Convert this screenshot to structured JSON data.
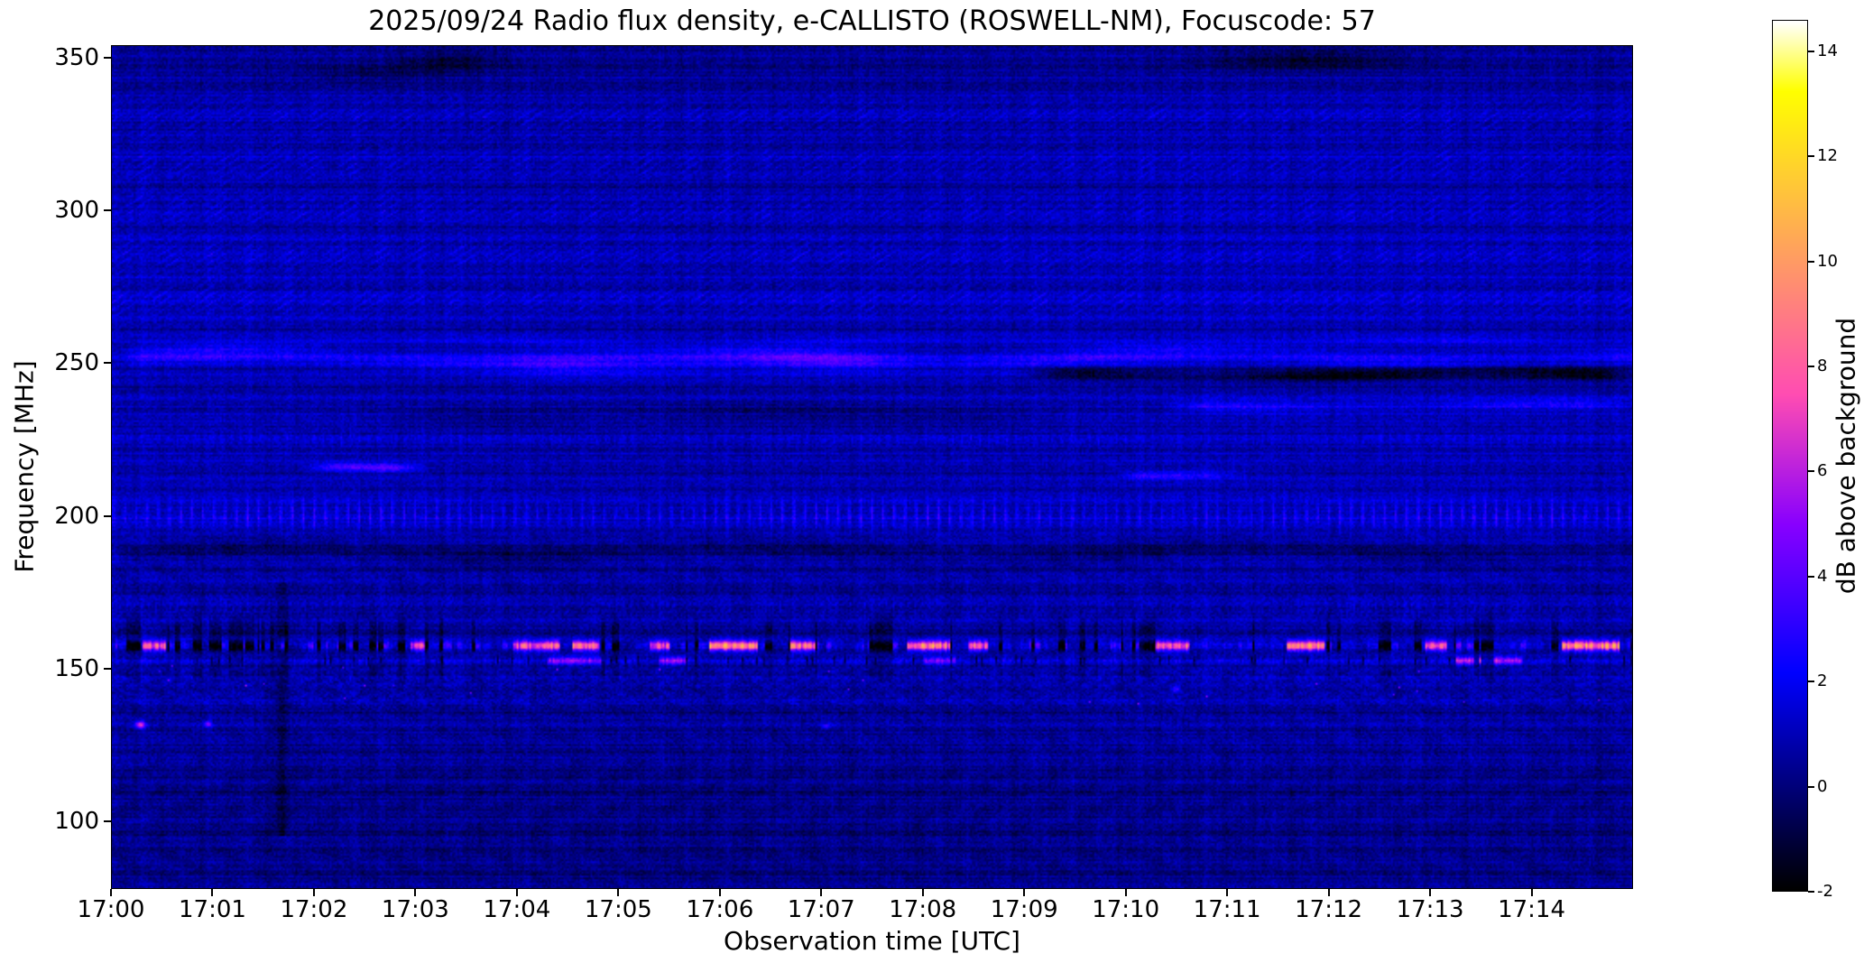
{
  "chart_data": {
    "type": "heatmap",
    "title": "2025/09/24  Radio flux density, e-CALLISTO (ROSWELL-NM), Focuscode: 57",
    "xlabel": "Observation time [UTC]",
    "ylabel": "Frequency [MHz]",
    "colormap": "gnuplot2",
    "grid": false,
    "x_start_min": 0,
    "x_end_min": 15,
    "x_ticks": [
      "17:00",
      "17:01",
      "17:02",
      "17:03",
      "17:04",
      "17:05",
      "17:06",
      "17:07",
      "17:08",
      "17:09",
      "17:10",
      "17:11",
      "17:12",
      "17:13",
      "17:14"
    ],
    "y_range": [
      78,
      354
    ],
    "y_ticks": [
      100,
      150,
      200,
      250,
      300,
      350
    ],
    "colorbar": {
      "label": "dB above background",
      "min": -2,
      "max": 14.6,
      "ticks": [
        14,
        12,
        10,
        8,
        6,
        4,
        2,
        0,
        -2
      ]
    },
    "features": [
      {
        "kind": "hatch",
        "name": "diagonal-interference-band",
        "f_lo": 262,
        "f_hi": 341,
        "amp": 1.25,
        "period": 7,
        "slope": 1.6
      },
      {
        "kind": "hline",
        "name": "bright-band-251",
        "f0": 251.5,
        "sigma": 2.0,
        "amp": 1.35,
        "wave": 1.2,
        "t0": 0,
        "t1": 15.3,
        "soft": 0.3
      },
      {
        "kind": "hline",
        "name": "bright-band-256",
        "f0": 256.5,
        "sigma": 1.2,
        "amp": 0.7,
        "wave": 0.8,
        "t0": 0,
        "t1": 15.3,
        "soft": 0.3
      },
      {
        "kind": "hline",
        "name": "bright-segment-250",
        "f0": 250.0,
        "sigma": 2.6,
        "amp": 1.35,
        "wave": 0.8,
        "t0": 3.4,
        "t1": 8.3,
        "soft": 1.2
      },
      {
        "kind": "hline",
        "name": "dark-streak-246",
        "f0": 246.3,
        "sigma": 1.5,
        "amp": -2.6,
        "wave": 0.5,
        "t0": 8.8,
        "t1": 15.3,
        "soft": 0.9
      },
      {
        "kind": "hline",
        "name": "bright-band-236",
        "f0": 236.0,
        "sigma": 1.3,
        "amp": 1.5,
        "wave": 0.4,
        "t0": 10.2,
        "t1": 15.3,
        "soft": 0.7
      },
      {
        "kind": "hline",
        "name": "dark-band-233",
        "f0": 233.0,
        "sigma": 2.6,
        "amp": -0.65,
        "wave": 0.8,
        "t0": 2.2,
        "t1": 9.6,
        "soft": 1.6
      },
      {
        "kind": "hline",
        "name": "streak-216",
        "f0": 216.0,
        "sigma": 1.0,
        "amp": 2.3,
        "wave": 0.3,
        "t0": 1.8,
        "t1": 3.2,
        "soft": 0.45
      },
      {
        "kind": "hline",
        "name": "streak-214",
        "f0": 213.5,
        "sigma": 0.9,
        "amp": 1.7,
        "wave": 0.3,
        "t0": 9.8,
        "t1": 11.3,
        "soft": 0.45
      },
      {
        "kind": "dashed",
        "name": "dashed-band-200",
        "f0": 200.5,
        "sigma": 3.4,
        "amp": 1.65,
        "period": 0.11
      },
      {
        "kind": "dashed",
        "name": "dotted-band-225",
        "f0": 225.0,
        "sigma": 1.6,
        "amp": 0.6,
        "period": 0.09
      },
      {
        "kind": "dashed",
        "name": "dotted-band-170",
        "f0": 170.0,
        "sigma": 1.4,
        "amp": 0.55,
        "period": 0.07
      },
      {
        "kind": "hline",
        "name": "dim-lane-188",
        "f0": 188.0,
        "sigma": 2.4,
        "amp": -0.75,
        "wave": 1.5,
        "t0": 0,
        "t1": 15.3,
        "soft": 0.3
      },
      {
        "kind": "rfi",
        "name": "rfi-line-157",
        "f0": 157.4,
        "sigma": 1.15,
        "black_prob": 0.3,
        "bursts": [
          {
            "t": 0.3,
            "d": 0.22,
            "a": 7.0
          },
          {
            "t": 2.95,
            "d": 0.12,
            "a": 6.0
          },
          {
            "t": 3.95,
            "d": 0.45,
            "a": 7.5
          },
          {
            "t": 4.55,
            "d": 0.25,
            "a": 8.0
          },
          {
            "t": 5.3,
            "d": 0.18,
            "a": 7.0
          },
          {
            "t": 5.9,
            "d": 0.45,
            "a": 9.0
          },
          {
            "t": 6.7,
            "d": 0.22,
            "a": 8.0
          },
          {
            "t": 7.85,
            "d": 0.4,
            "a": 8.5
          },
          {
            "t": 8.45,
            "d": 0.18,
            "a": 7.0
          },
          {
            "t": 10.3,
            "d": 0.32,
            "a": 8.0
          },
          {
            "t": 11.6,
            "d": 0.35,
            "a": 8.5
          },
          {
            "t": 12.95,
            "d": 0.2,
            "a": 7.0
          },
          {
            "t": 14.3,
            "d": 0.55,
            "a": 9.0
          }
        ]
      },
      {
        "kind": "rfi2",
        "name": "rfi-line-152",
        "f0": 152.6,
        "sigma": 0.95,
        "segs": [
          {
            "t": 4.3,
            "d": 0.55,
            "a": 4.0
          },
          {
            "t": 5.4,
            "d": 0.25,
            "a": 4.5
          },
          {
            "t": 8.0,
            "d": 0.3,
            "a": 3.5
          },
          {
            "t": 13.25,
            "d": 0.65,
            "a": 5.0
          }
        ]
      },
      {
        "kind": "haze",
        "name": "interference-haze-145",
        "f_lo": 136,
        "f_hi": 152,
        "amp": 0.45
      },
      {
        "kind": "vline",
        "name": "dark-column-1701",
        "t": 1.68,
        "w": 0.05,
        "f_lo": 95,
        "f_hi": 178,
        "amp": -1.2
      },
      {
        "kind": "blobs",
        "name": "sporadic-features",
        "points": [
          {
            "t": 3.35,
            "f": 349.0,
            "a": -1.3,
            "st": 0.35,
            "sf": 2.5
          },
          {
            "t": 11.8,
            "f": 349.5,
            "a": -1.6,
            "st": 0.7,
            "sf": 2.5
          },
          {
            "t": 2.6,
            "f": 345.0,
            "a": -0.9,
            "st": 0.5,
            "sf": 2.0
          },
          {
            "t": 0.28,
            "f": 131.5,
            "a": 6.0,
            "st": 0.035,
            "sf": 0.8
          },
          {
            "t": 0.95,
            "f": 131.8,
            "a": 3.5,
            "st": 0.03,
            "sf": 0.8
          },
          {
            "t": 7.05,
            "f": 131.0,
            "a": 2.5,
            "st": 0.03,
            "sf": 0.7
          },
          {
            "t": 10.5,
            "f": 143.0,
            "a": 3.0,
            "st": 0.03,
            "sf": 0.7
          }
        ]
      }
    ]
  }
}
